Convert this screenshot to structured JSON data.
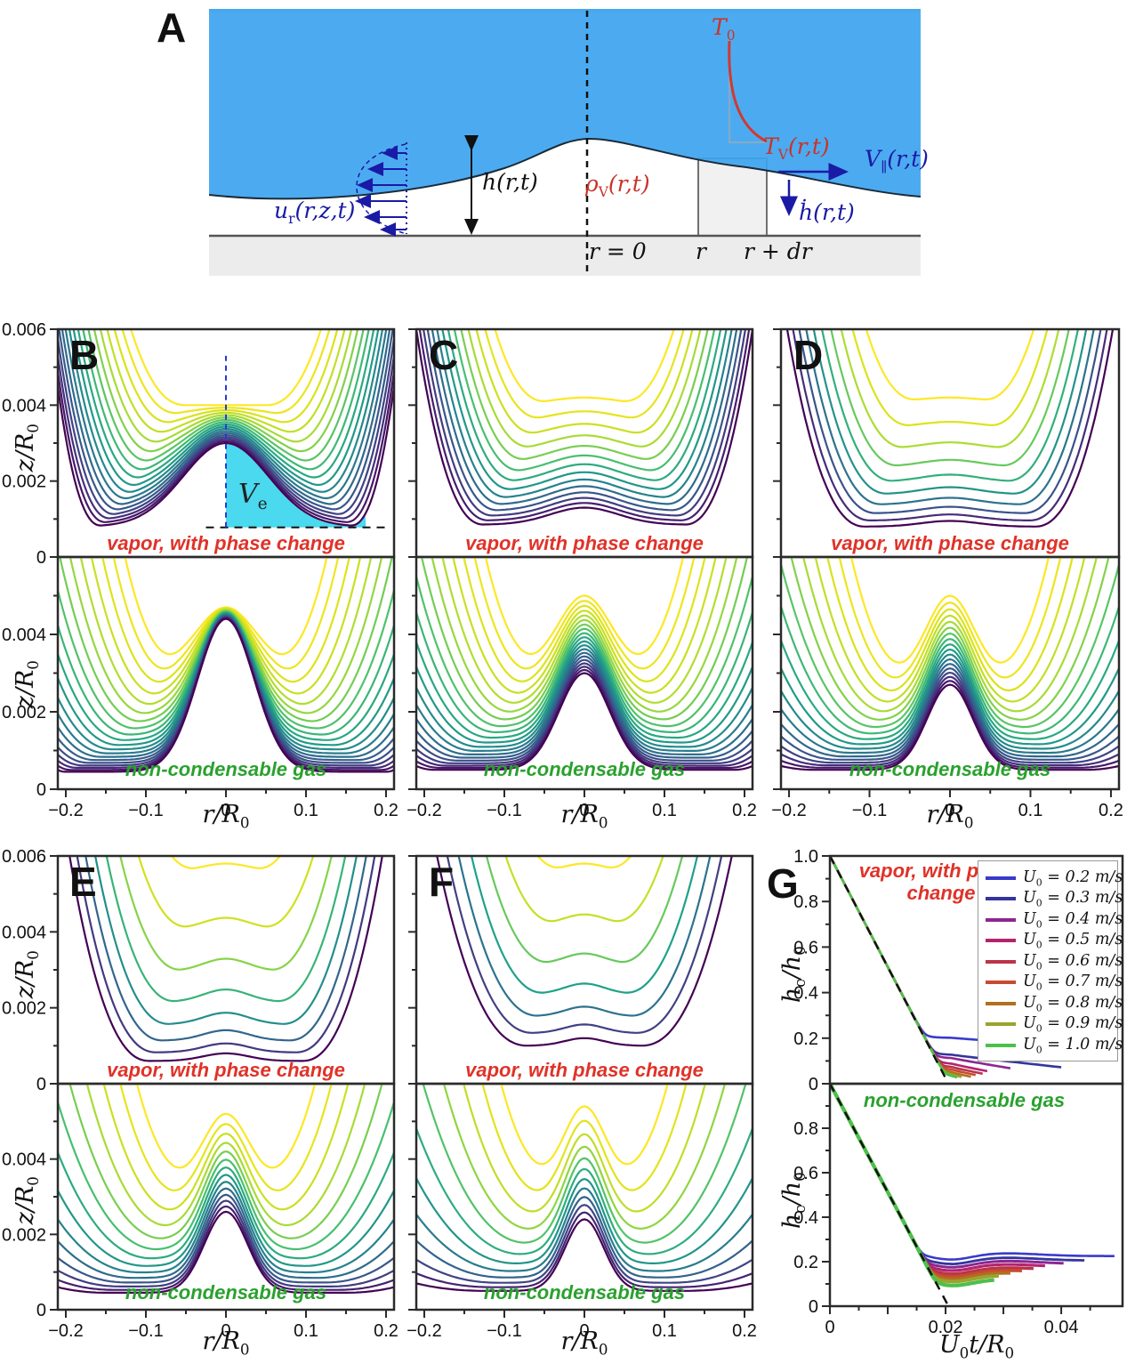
{
  "panelA": {
    "label": "A",
    "colors": {
      "liquid": "#3da4ef",
      "substrate": "#ececec",
      "temp_curve": "#d03a30",
      "velocity": "#1a1aa6"
    },
    "labels": {
      "T0": "T_{0}",
      "TV": "T_{V}(r,t)",
      "Vpar": "V_{∥}(r,t)",
      "hdot": "ḣ(r,t)",
      "h": "h(r,t)",
      "rhoV": "ρ_{V}(r,t)",
      "ur": "u_{r}(r,z,t)",
      "r0": "r = 0",
      "r": "r",
      "rdr": "r + dr"
    }
  },
  "common": {
    "viridis": [
      "#440154",
      "#46327e",
      "#365c8d",
      "#277f8e",
      "#1fa187",
      "#4ac16d",
      "#a0da39",
      "#d8e219",
      "#fde725"
    ],
    "top_caption": "vapor, with phase change",
    "bottom_caption": "non-condensable gas",
    "caption_colors": {
      "top": "#e03228",
      "bottom": "#2aa12e"
    },
    "xlabel": "r/R_{0}",
    "ylabel": "z/R_{0}",
    "profile_xticks": {
      "values": [
        -0.2,
        -0.1,
        0,
        0.1,
        0.2
      ],
      "labels": [
        "−0.2",
        "−0.1",
        "0",
        "0.1",
        "0.2"
      ]
    },
    "profile_yticks_top": {
      "values": [
        0.006,
        0.004,
        0.002,
        0
      ],
      "labels": [
        "0.006",
        "0.004",
        "0.002",
        "0"
      ]
    },
    "profile_yticks_bottom": {
      "values": [
        0.004,
        0.002,
        0
      ],
      "labels": [
        "0.004",
        "0.002",
        "0"
      ]
    }
  },
  "chart_data": [
    {
      "panel": "B",
      "type": "line",
      "xlim": [
        -0.21,
        0.21
      ],
      "ylim": [
        0,
        0.006
      ],
      "xlabel": "r/R_{0}",
      "ylabel": "z/R_{0}",
      "top": {
        "caption": "vapor, with phase change",
        "n": 18,
        "hc": [
          0.004,
          0.003
        ],
        "hmin": [
          0.004,
          0.0008
        ],
        "rneck": [
          0.05,
          0.155
        ],
        "He": [
          0.018,
          0.0045
        ],
        "wb": 0.075,
        "volume_annotation": {
          "label": "V_{e}",
          "fill": "#4ad9ee",
          "baseline": 0.00078,
          "r_max": 0.175,
          "dash_top": 0.0053
        }
      },
      "bottom": {
        "caption": "non-condensable gas",
        "n": 20,
        "hc": [
          0.0047,
          0.0044
        ],
        "hmin": [
          0.0032,
          0.00045
        ],
        "rneck": [
          0.055,
          0.2
        ],
        "He": [
          0.02,
          0.0005
        ],
        "wb": 0.05
      }
    },
    {
      "panel": "C",
      "type": "line",
      "xlim": [
        -0.21,
        0.21
      ],
      "ylim": [
        0,
        0.006
      ],
      "xlabel": "r/R_{0}",
      "top": {
        "caption": "vapor, with phase change",
        "n": 14,
        "hc": [
          0.0042,
          0.0013
        ],
        "hmin": [
          0.004,
          0.00085
        ],
        "rneck": [
          0.045,
          0.125
        ],
        "He": [
          0.02,
          0.006
        ],
        "wb": 0.06
      },
      "bottom": {
        "caption": "non-condensable gas",
        "n": 20,
        "hc": [
          0.005,
          0.003
        ],
        "hmin": [
          0.0032,
          0.0005
        ],
        "rneck": [
          0.05,
          0.185
        ],
        "He": [
          0.02,
          0.0006
        ],
        "wb": 0.045
      }
    },
    {
      "panel": "D",
      "type": "line",
      "xlim": [
        -0.21,
        0.21
      ],
      "ylim": [
        0,
        0.006
      ],
      "xlabel": "r/R_{0}",
      "top": {
        "caption": "vapor, with phase change",
        "n": 10,
        "hc": [
          0.0042,
          0.00095
        ],
        "hmin": [
          0.0041,
          0.0008
        ],
        "rneck": [
          0.04,
          0.105
        ],
        "He": [
          0.022,
          0.007
        ],
        "wb": 0.05
      },
      "bottom": {
        "caption": "non-condensable gas",
        "n": 18,
        "hc": [
          0.005,
          0.0027
        ],
        "hmin": [
          0.003,
          0.0005
        ],
        "rneck": [
          0.045,
          0.165
        ],
        "He": [
          0.02,
          0.0006
        ],
        "wb": 0.04
      }
    },
    {
      "panel": "E",
      "type": "line",
      "xlim": [
        -0.21,
        0.21
      ],
      "ylim": [
        0,
        0.006
      ],
      "xlabel": "r/R_{0}",
      "ylabel": "z/R_{0}",
      "top": {
        "caption": "vapor, with phase change",
        "n": 8,
        "hc": [
          0.0058,
          0.0008
        ],
        "hmin": [
          0.0056,
          0.0006
        ],
        "rneck": [
          0.035,
          0.095
        ],
        "He": [
          0.024,
          0.008
        ],
        "wb": 0.04
      },
      "bottom": {
        "caption": "non-condensable gas",
        "n": 14,
        "hc": [
          0.0052,
          0.0026
        ],
        "hmin": [
          0.0035,
          0.00045
        ],
        "rneck": [
          0.04,
          0.145
        ],
        "He": [
          0.022,
          0.0006
        ],
        "wb": 0.038
      }
    },
    {
      "panel": "F",
      "type": "line",
      "xlim": [
        -0.21,
        0.21
      ],
      "ylim": [
        0,
        0.006
      ],
      "xlabel": "r/R_{0}",
      "top": {
        "caption": "vapor, with phase change",
        "n": 7,
        "hc": [
          0.0058,
          0.0012
        ],
        "hmin": [
          0.0056,
          0.001
        ],
        "rneck": [
          0.025,
          0.07
        ],
        "He": [
          0.026,
          0.009
        ],
        "wb": 0.035
      },
      "bottom": {
        "caption": "non-condensable gas",
        "n": 12,
        "hc": [
          0.0054,
          0.0024
        ],
        "hmin": [
          0.0036,
          0.0005
        ],
        "rneck": [
          0.035,
          0.12
        ],
        "He": [
          0.024,
          0.0007
        ],
        "wb": 0.034
      }
    },
    {
      "panel": "G",
      "type": "line",
      "xlim": [
        0,
        0.0506
      ],
      "ylim": [
        0,
        1
      ],
      "xlabel": "U_{0}t/R_{0}",
      "ylabel": "h_{c}/h_{0}",
      "xticks": {
        "values": [
          0,
          0.02,
          0.04
        ],
        "labels": [
          "0",
          "0.02",
          "0.04"
        ]
      },
      "yticks_top": {
        "values": [
          1,
          0.8,
          0.6,
          0.4,
          0.2,
          0
        ],
        "labels": [
          "1.0",
          "0.8",
          "0.6",
          "0.4",
          "0.2",
          "0"
        ]
      },
      "yticks_bottom": {
        "values": [
          0.8,
          0.6,
          0.4,
          0.2,
          0
        ],
        "labels": [
          "0.8",
          "0.6",
          "0.4",
          "0.2",
          "0"
        ]
      },
      "dashed_line": {
        "x": [
          0,
          0.0205
        ],
        "y": [
          1,
          0
        ]
      },
      "legend": [
        {
          "label": "U_{0} = 0.2 m/s",
          "color": "#3a3acb"
        },
        {
          "label": "U_{0} = 0.3 m/s",
          "color": "#34349e"
        },
        {
          "label": "U_{0} = 0.4 m/s",
          "color": "#8c2691"
        },
        {
          "label": "U_{0} = 0.5 m/s",
          "color": "#b32470"
        },
        {
          "label": "U_{0} = 0.6 m/s",
          "color": "#ba3448"
        },
        {
          "label": "U_{0} = 0.7 m/s",
          "color": "#c94a31"
        },
        {
          "label": "U_{0} = 0.8 m/s",
          "color": "#b0701f"
        },
        {
          "label": "U_{0} = 0.9 m/s",
          "color": "#9aa42e"
        },
        {
          "label": "U_{0} = 1.0 m/s",
          "color": "#4cc04b"
        }
      ],
      "top": {
        "caption": "vapor, with phase change",
        "series": [
          {
            "u": 0.2,
            "plateau": 0.2,
            "drift": 1.8,
            "xend": 0.0455
          },
          {
            "u": 0.3,
            "plateau": 0.125,
            "drift": 2.8,
            "xend": 0.04
          },
          {
            "u": 0.4,
            "plateau": 0.11,
            "drift": 4.2,
            "xend": 0.0315
          },
          {
            "u": 0.5,
            "plateau": 0.085,
            "drift": 5.0,
            "xend": 0.0275
          },
          {
            "u": 0.6,
            "plateau": 0.07,
            "drift": 5.0,
            "xend": 0.0265
          },
          {
            "u": 0.7,
            "plateau": 0.058,
            "drift": 5.0,
            "xend": 0.0255
          },
          {
            "u": 0.8,
            "plateau": 0.046,
            "drift": 5.0,
            "xend": 0.0245
          },
          {
            "u": 0.9,
            "plateau": 0.036,
            "drift": 5.0,
            "xend": 0.023
          },
          {
            "u": 1.0,
            "plateau": 0.028,
            "drift": 4.0,
            "xend": 0.022
          }
        ]
      },
      "bottom": {
        "caption": "non-condensable gas",
        "dip": {
          "x": 0.0213,
          "w": 0.0045,
          "a": 0.02
        },
        "bump": {
          "x": 0.0305,
          "w": 0.008,
          "a": 0.012
        },
        "series": [
          {
            "u": 0.2,
            "plateau": 0.225,
            "xend": 0.0495
          },
          {
            "u": 0.3,
            "plateau": 0.205,
            "xend": 0.044
          },
          {
            "u": 0.4,
            "plateau": 0.19,
            "xend": 0.0405
          },
          {
            "u": 0.5,
            "plateau": 0.175,
            "xend": 0.0375
          },
          {
            "u": 0.6,
            "plateau": 0.16,
            "xend": 0.0355
          },
          {
            "u": 0.7,
            "plateau": 0.148,
            "xend": 0.0335
          },
          {
            "u": 0.8,
            "plateau": 0.137,
            "xend": 0.0315
          },
          {
            "u": 0.9,
            "plateau": 0.125,
            "xend": 0.0295
          },
          {
            "u": 1.0,
            "plateau": 0.107,
            "xend": 0.0285
          }
        ]
      }
    }
  ]
}
